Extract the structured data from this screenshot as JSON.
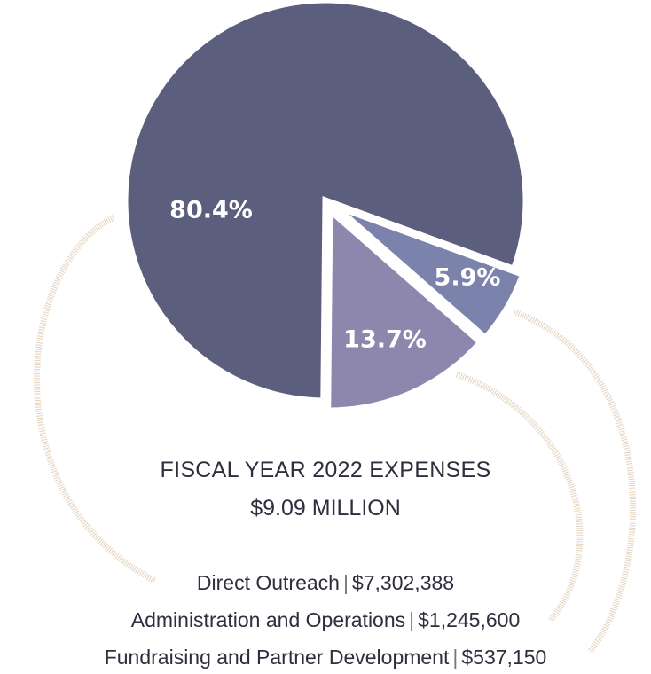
{
  "chart_data": {
    "type": "pie",
    "title": "FISCAL YEAR 2022 EXPENSES",
    "subtitle": "$9.09 MILLION",
    "categories": [
      "Direct Outreach",
      "Administration and Operations",
      "Fundraising and Partner Development"
    ],
    "values": [
      80.4,
      13.7,
      5.9
    ],
    "value_labels": [
      "80.4%",
      "13.7%",
      "5.9%"
    ],
    "amounts": [
      "$7,302,388",
      "$1,245,600",
      "$537,150"
    ],
    "separator": "|",
    "colors": [
      "#5b5e7c",
      "#8e87ad",
      "#7b82ac"
    ]
  }
}
